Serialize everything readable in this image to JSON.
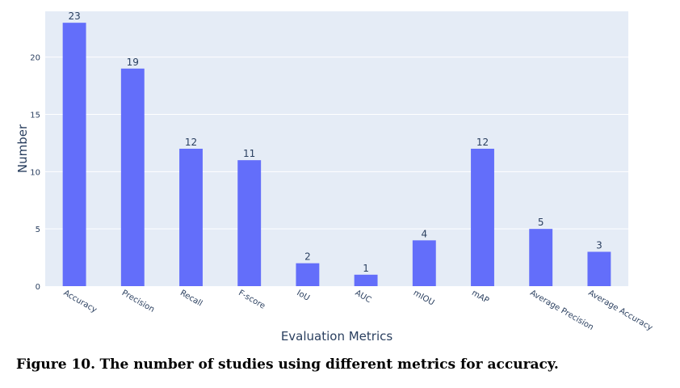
{
  "chart_data": {
    "type": "bar",
    "categories": [
      "Accuracy",
      "Precision",
      "Recall",
      "F-score",
      "IoU",
      "AUC",
      "mIOU",
      "mAP",
      "Average Precision",
      "Average Accuracy"
    ],
    "values": [
      23,
      19,
      12,
      11,
      2,
      1,
      4,
      12,
      5,
      3
    ],
    "data_labels": [
      "23",
      "19",
      "12",
      "11",
      "2",
      "1",
      "4",
      "12",
      "5",
      "3"
    ],
    "xlabel": "Evaluation Metrics",
    "ylabel": "Number",
    "ylim": [
      0,
      24
    ],
    "yticks": [
      0,
      5,
      10,
      15,
      20
    ],
    "grid": true,
    "bar_color": "#636efa",
    "plot_bg": "#e5ecf6"
  },
  "caption": {
    "label": "Figure 10.",
    "text": "The number of studies using different metrics for accuracy."
  }
}
